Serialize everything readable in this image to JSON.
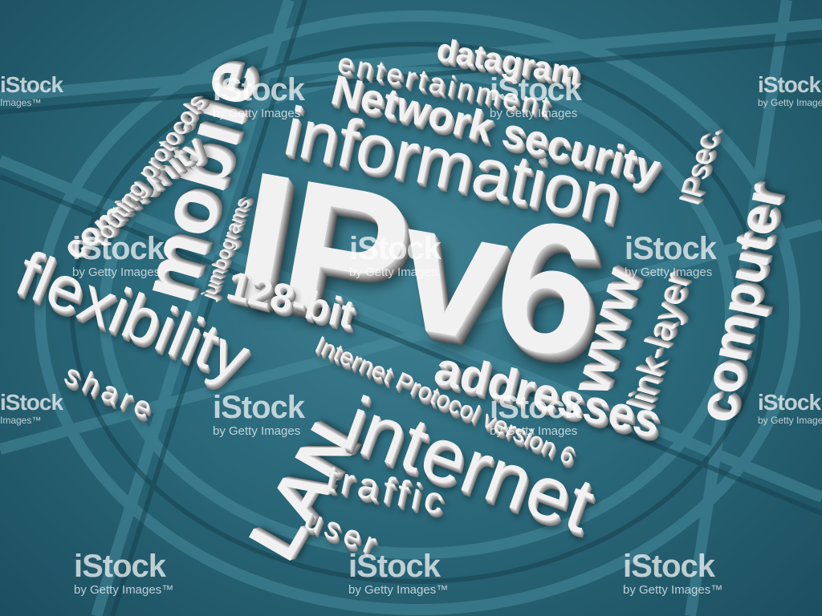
{
  "words": {
    "ipv6": "IPv6",
    "information": "information",
    "mobile": "mobile",
    "datagram": "datagram",
    "entertainment": "entertainment",
    "network_security": "Network security",
    "ipsec": "IPsec.",
    "community": "community",
    "routing_protocols": "routing protocols",
    "jumbograms": "jumbograms",
    "flexibility": "flexibility",
    "bit128": "128-bit",
    "addresses": "addresses",
    "internet_protocol_version": "Internet Protocol version 6",
    "www": "www",
    "link_layer": "link-layer",
    "computer": "computer",
    "share": "share",
    "lan": "LAN",
    "internet": "internet",
    "traffic": "traffic",
    "user": "user"
  },
  "watermark": {
    "logo": "iStock",
    "sub": "by Getty Images",
    "sub_tm": "by Getty Images™",
    "sub_short": "Images™"
  },
  "colors": {
    "background": "#2b6a7c",
    "letters": "#f1f1f1"
  }
}
